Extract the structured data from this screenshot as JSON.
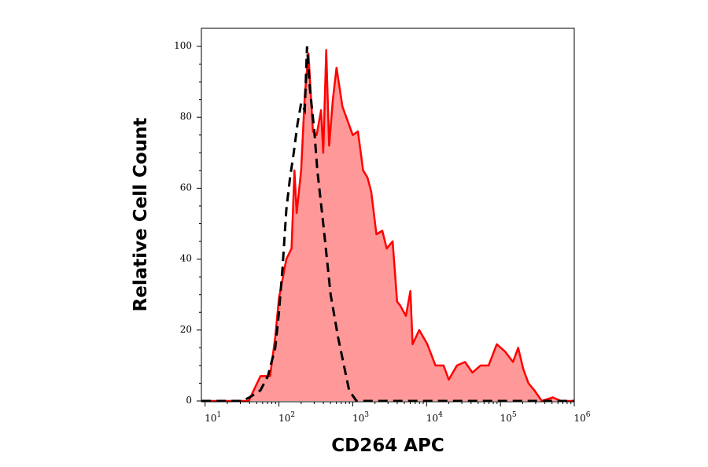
{
  "chart_data": {
    "type": "area",
    "title": "",
    "xlabel": "CD264 APC",
    "ylabel": "Relative Cell Count",
    "x_scale": "log",
    "xlim": [
      8.9,
      1000000
    ],
    "ylim": [
      0,
      100
    ],
    "grid": false,
    "legend": "none",
    "y_ticks": [
      0,
      20,
      40,
      60,
      80,
      100
    ],
    "y_tick_labels": [
      "0",
      "20",
      "40",
      "60",
      "80",
      "100"
    ],
    "x_ticks": [
      10,
      100,
      1000,
      10000,
      100000,
      1000000
    ],
    "x_tick_labels": [
      {
        "base": "10",
        "exp": "1"
      },
      {
        "base": "10",
        "exp": "2"
      },
      {
        "base": "10",
        "exp": "3"
      },
      {
        "base": "10",
        "exp": "4"
      },
      {
        "base": "10",
        "exp": "5"
      },
      {
        "base": "10",
        "exp": "6"
      }
    ],
    "series": [
      {
        "style": "filled",
        "color": "#ff0000",
        "fill": "#ff9999",
        "log10_x": [
          0.95,
          1.59,
          1.75,
          1.88,
          1.95,
          2.0,
          2.1,
          2.17,
          2.21,
          2.24,
          2.3,
          2.35,
          2.4,
          2.46,
          2.51,
          2.57,
          2.6,
          2.64,
          2.68,
          2.73,
          2.78,
          2.86,
          2.93,
          3.0,
          3.07,
          3.14,
          3.2,
          3.25,
          3.32,
          3.4,
          3.46,
          3.54,
          3.6,
          3.64,
          3.72,
          3.78,
          3.81,
          3.9,
          4.01,
          4.12,
          4.23,
          4.3,
          4.41,
          4.52,
          4.62,
          4.73,
          4.84,
          4.95,
          5.06,
          5.17,
          5.24,
          5.31,
          5.38,
          5.46,
          5.56,
          5.71,
          5.82,
          6.0
        ],
        "y": [
          0,
          0,
          7,
          7,
          18,
          29,
          40,
          43,
          65,
          53,
          65,
          86,
          98,
          76,
          75,
          82,
          70,
          99,
          72,
          85,
          94,
          83,
          79,
          75,
          76,
          65,
          63,
          59,
          47,
          48,
          43,
          45,
          28,
          27,
          24,
          31,
          16,
          20,
          16,
          10,
          10,
          6,
          10,
          11,
          8,
          10,
          10,
          16,
          14,
          11,
          15,
          9,
          5,
          3,
          0,
          1,
          0,
          0
        ]
      },
      {
        "style": "dashed",
        "color": "#000000",
        "log10_x": [
          0.95,
          1.5,
          1.6,
          1.75,
          1.85,
          1.95,
          2.0,
          2.05,
          2.1,
          2.15,
          2.2,
          2.25,
          2.3,
          2.35,
          2.38,
          2.42,
          2.48,
          2.52,
          2.6,
          2.7,
          2.8,
          2.88,
          2.95,
          3.05,
          6.0
        ],
        "y": [
          0,
          0,
          1,
          3,
          7,
          15,
          25,
          38,
          54,
          63,
          70,
          78,
          84,
          82,
          100,
          88,
          76,
          65,
          50,
          30,
          18,
          10,
          3,
          0,
          0
        ]
      }
    ]
  }
}
